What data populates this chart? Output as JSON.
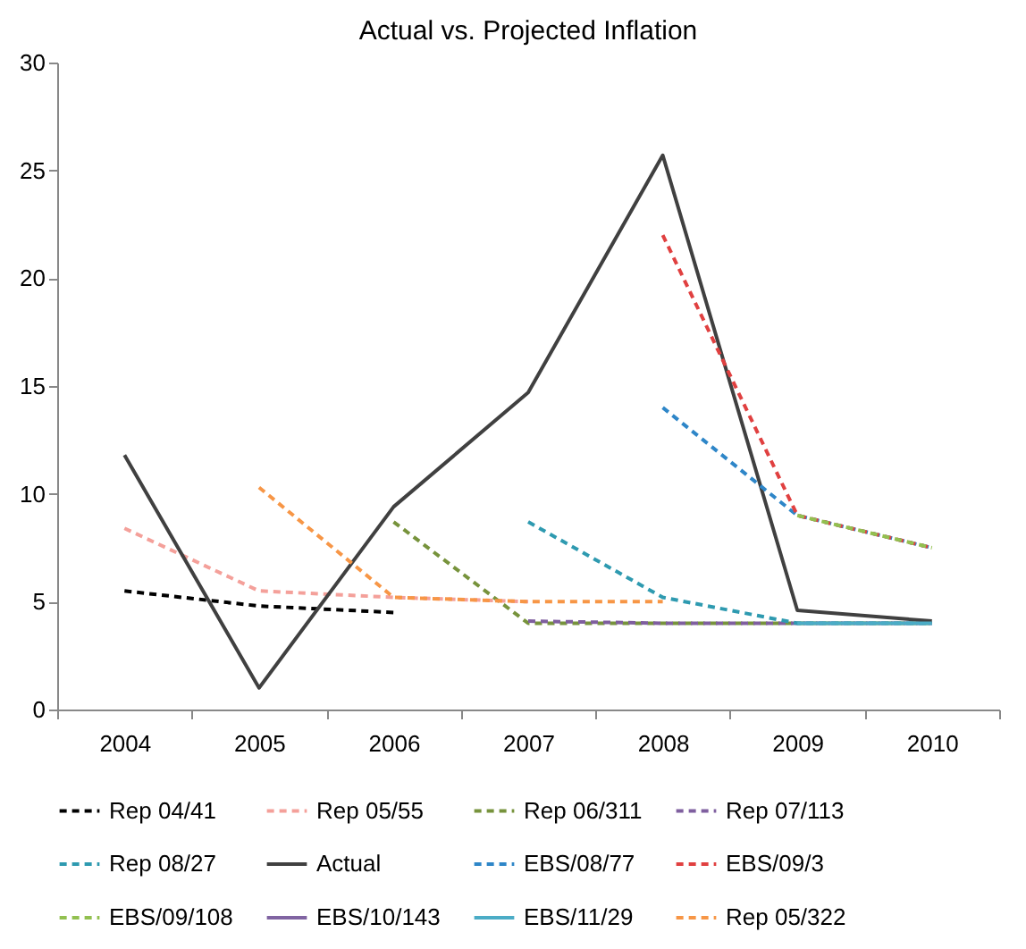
{
  "chart_data": {
    "type": "line",
    "title": "Actual vs. Projected Inflation",
    "categories": [
      "2004",
      "2005",
      "2006",
      "2007",
      "2008",
      "2009",
      "2010"
    ],
    "ylim": [
      0,
      30
    ],
    "yticks": [
      0,
      5,
      10,
      15,
      20,
      25,
      30
    ],
    "grid": false,
    "legend": "bottom",
    "series": [
      {
        "name": "Rep 04/41",
        "color": "#000000",
        "line_style": "dashed",
        "values": [
          5.5,
          4.8,
          4.5,
          null,
          null,
          null,
          null
        ]
      },
      {
        "name": "Rep 05/55",
        "color": "#f4a09a",
        "line_style": "dashed",
        "values": [
          8.4,
          5.5,
          5.2,
          5.0,
          null,
          null,
          null
        ]
      },
      {
        "name": "Rep 06/311",
        "color": "#77933c",
        "line_style": "dashed",
        "values": [
          null,
          null,
          8.7,
          4.0,
          4.0,
          4.0,
          4.0
        ]
      },
      {
        "name": "Rep 07/113",
        "color": "#7f5f9f",
        "line_style": "dashed",
        "values": [
          null,
          null,
          null,
          4.1,
          4.0,
          4.0,
          4.0
        ]
      },
      {
        "name": "Rep 08/27",
        "color": "#2e9ab0",
        "line_style": "dashed",
        "values": [
          null,
          null,
          null,
          8.7,
          5.2,
          4.0,
          4.0
        ]
      },
      {
        "name": "Actual",
        "color": "#404040",
        "line_style": "solid",
        "values": [
          11.8,
          1.0,
          9.4,
          14.7,
          25.7,
          4.6,
          4.1
        ]
      },
      {
        "name": "EBS/08/77",
        "color": "#2e86c8",
        "line_style": "dashed",
        "values": [
          null,
          null,
          null,
          null,
          14.0,
          9.0,
          7.5
        ]
      },
      {
        "name": "EBS/09/3",
        "color": "#e04040",
        "line_style": "dashed",
        "values": [
          null,
          null,
          null,
          null,
          22.0,
          9.0,
          7.5
        ]
      },
      {
        "name": "EBS/09/108",
        "color": "#92c050",
        "line_style": "dashed",
        "values": [
          null,
          null,
          null,
          null,
          null,
          9.0,
          7.5
        ]
      },
      {
        "name": "EBS/10/143",
        "color": "#8064a2",
        "line_style": "solid",
        "values": [
          null,
          null,
          null,
          null,
          null,
          null,
          null
        ]
      },
      {
        "name": "EBS/11/29",
        "color": "#4bacc6",
        "line_style": "solid",
        "values": [
          null,
          null,
          null,
          null,
          null,
          4.0,
          4.0
        ]
      },
      {
        "name": "Rep 05/322",
        "color": "#f79646",
        "line_style": "dashed",
        "values": [
          null,
          10.3,
          5.2,
          5.0,
          5.0,
          null,
          null
        ]
      }
    ]
  }
}
